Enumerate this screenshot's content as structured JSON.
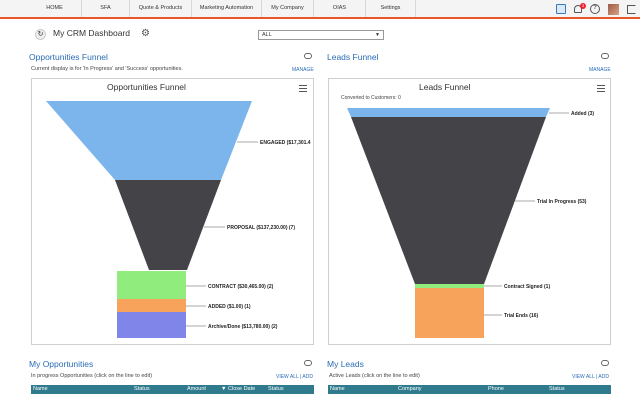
{
  "nav": {
    "items": [
      "HOME",
      "SFA",
      "Quote & Products",
      "Marketing Automation",
      "My Company",
      "OIAS",
      "Settings"
    ],
    "notification_count": "3",
    "icons": [
      "calendar-icon",
      "bell-icon",
      "help-icon",
      "avatar",
      "logout-icon"
    ]
  },
  "header": {
    "title": "My CRM Dashboard",
    "filter_value": "ALL"
  },
  "opportunities": {
    "title": "Opportunities Funnel",
    "subtitle": "Current display is for 'In Progress' and 'Success' opportunities.",
    "manage": "MANAGE",
    "chart_title": "Opportunities Funnel"
  },
  "leads": {
    "title": "Leads Funnel",
    "manage": "MANAGE",
    "chart_title": "Leads Funnel",
    "conversion": "Converted to Customers: 0"
  },
  "chart_data": [
    {
      "type": "funnel",
      "title": "Opportunities Funnel",
      "categories": [
        "ENGAGED",
        "PROPOSAL",
        "CONTRACT",
        "ADDED",
        "Archive/Done"
      ],
      "labels": [
        "ENGAGED ($17,301.4",
        "PROPOSAL ($137,230.00) (7)",
        "CONTRACT ($30,465.00) (2)",
        "ADDED ($1.00) (1)",
        "Archive/Done ($13,780.00) (2)"
      ],
      "colors": [
        "#7cb5ec",
        "#434348",
        "#90ed7d",
        "#f7a35c",
        "#8085e9"
      ]
    },
    {
      "type": "funnel",
      "title": "Leads Funnel",
      "categories": [
        "Added",
        "Trial In Progress",
        "Contract Signed",
        "Trial Ends"
      ],
      "values": [
        3,
        53,
        1,
        16
      ],
      "labels": [
        "Added (3)",
        "Trial In Progress (53)",
        "Contract Signed (1)",
        "Trial Ends (16)"
      ],
      "colors": [
        "#7cb5ec",
        "#434348",
        "#90ed7d",
        "#f7a35c"
      ]
    }
  ],
  "my_opportunities": {
    "title": "My Opportunities",
    "subtitle": "In progress Opportunities (click on the line to edit)",
    "view_all": "VIEW ALL | ADD",
    "columns": [
      "Name",
      "Status",
      "Amount",
      "Close Date",
      "Status"
    ]
  },
  "my_leads": {
    "title": "My Leads",
    "subtitle": "Active Leads (click on the line to edit)",
    "view_all": "VIEW ALL | ADD",
    "columns": [
      "Name",
      "Company",
      "Phone",
      "Status"
    ]
  }
}
